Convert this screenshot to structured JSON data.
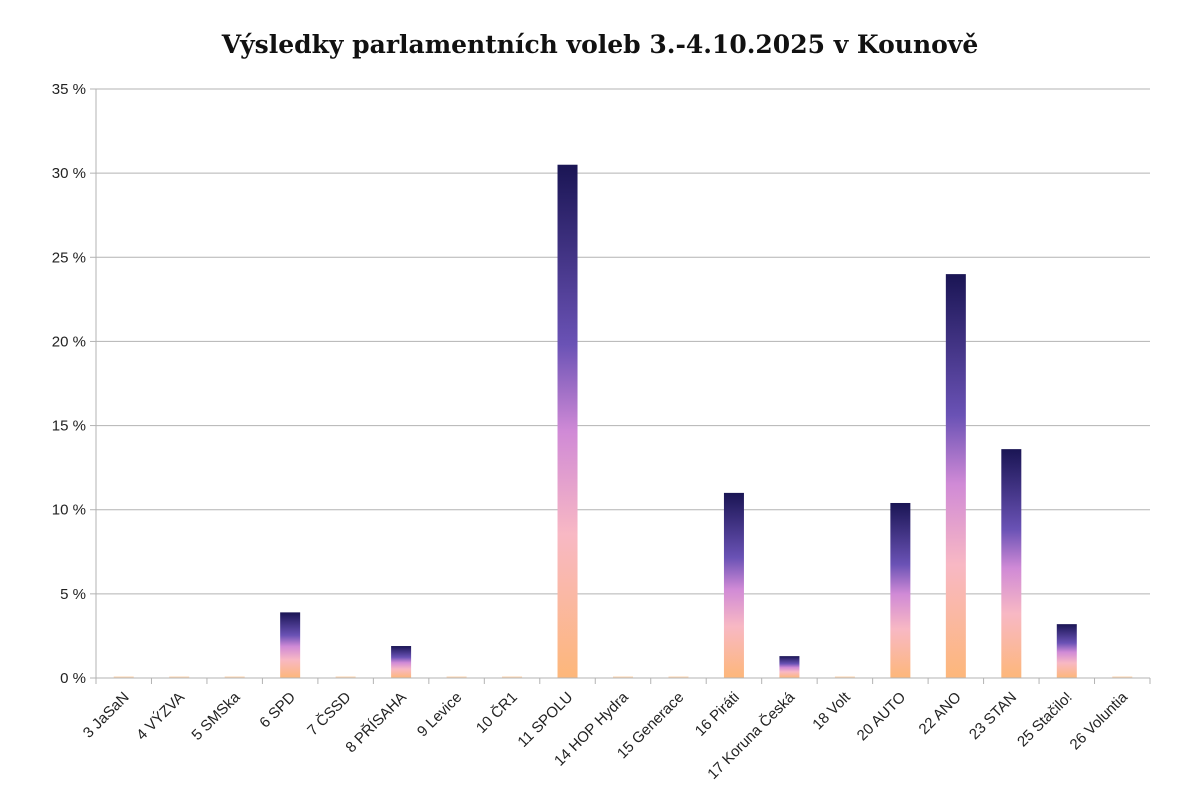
{
  "chart_data": {
    "type": "bar",
    "title": "Výsledky parlamentních voleb 3.-4.10.2025 v Kounově",
    "xlabel": "",
    "ylabel": "",
    "ylim": [
      0,
      35
    ],
    "yticks": [
      "0 %",
      "5 %",
      "10 %",
      "15 %",
      "20 %",
      "25 %",
      "30 %",
      "35 %"
    ],
    "grid": true,
    "legend": "none",
    "categories": [
      "3 JaSaN",
      "4 VÝZVA",
      "5 SMSka",
      "6 SPD",
      "7 ČSSD",
      "8 PŘÍSAHA",
      "9 Levice",
      "10 ČR1",
      "11 SPOLU",
      "14 HOP Hydra",
      "15 Generace",
      "16 Piráti",
      "17 Koruna Česká",
      "18 Volt",
      "20 AUTO",
      "22 ANO",
      "23 STAN",
      "25 Stačilo!",
      "26 Voluntia"
    ],
    "values": [
      0,
      0,
      0,
      3.9,
      0,
      1.9,
      0,
      0,
      30.5,
      0,
      0,
      11.0,
      1.3,
      0,
      10.4,
      24.0,
      13.6,
      3.2,
      0
    ],
    "colors": {
      "gradient_top": "#1a1554",
      "gradient_upper": "#6a52b5",
      "gradient_mid": "#d08ad6",
      "gradient_lower": "#f8b8c4",
      "gradient_bottom": "#fdb77a",
      "grid": "#b3b3b3"
    }
  }
}
